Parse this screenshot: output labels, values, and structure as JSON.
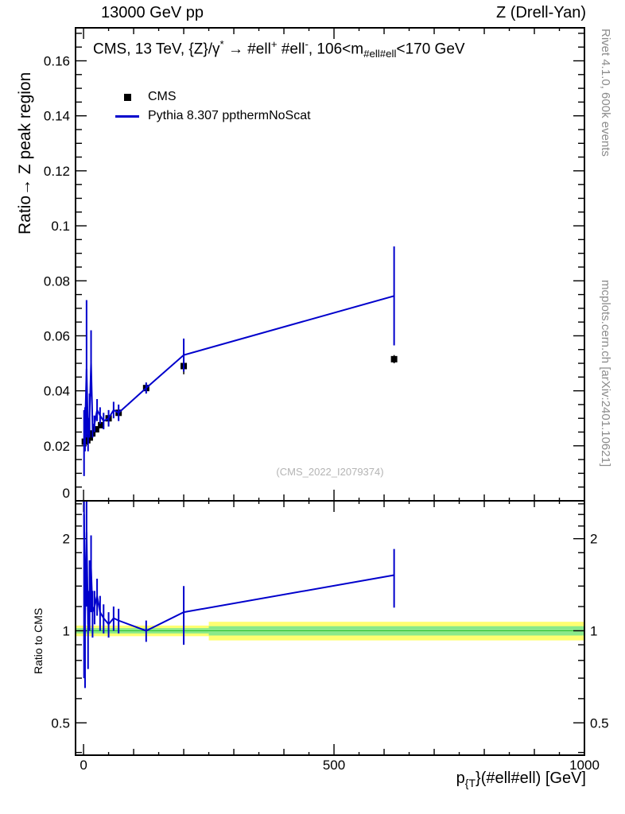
{
  "header": {
    "left": "13000 GeV pp",
    "right": "Z (Drell-Yan)"
  },
  "main_panel": {
    "title_segments": [
      {
        "t": "CMS, 13 TeV, {Z}/γ",
        "s": "n"
      },
      {
        "t": "*",
        "s": "sup"
      },
      {
        "t": " → #ell",
        "s": "n"
      },
      {
        "t": "+",
        "s": "sup"
      },
      {
        "t": " #ell",
        "s": "n"
      },
      {
        "t": "-",
        "s": "sup"
      },
      {
        "t": ", 106<m",
        "s": "n"
      },
      {
        "t": "#ell#ell",
        "s": "sub"
      },
      {
        "t": "<170 GeV",
        "s": "n"
      }
    ],
    "ylabel": "Ratio→ Z peak region",
    "watermark": "(CMS_2022_I2079374)"
  },
  "ratio_panel": {
    "ylabel": "Ratio to CMS"
  },
  "x_axis_label_segments": [
    {
      "t": "p",
      "s": "n"
    },
    {
      "t": "{T",
      "s": "sub"
    },
    {
      "t": "}(#ell#ell) [GeV]",
      "s": "n"
    }
  ],
  "side_notes": {
    "top": "Rivet 4.1.0,  600k events",
    "bottom": "mcplots.cern.ch [arXiv:2401.10621]"
  },
  "colors": {
    "mc_line": "#0000cc",
    "data_marker": "#000000",
    "band_outer": "#ffff70",
    "band_inner": "#8ae98a",
    "reference_line": "#2fbf2f"
  },
  "chart_data": [
    {
      "type": "scatter",
      "panel": "main",
      "xlim": [
        -16,
        1000
      ],
      "ylim": [
        0,
        0.172
      ],
      "x_axis": {
        "major": [
          0,
          500,
          1000
        ],
        "major_labels": [
          "0",
          "500",
          "1000"
        ],
        "minor_step": 100,
        "minor2_step": 50
      },
      "y_axis": {
        "major": [
          0.02,
          0.04,
          0.06,
          0.08,
          0.1,
          0.12,
          0.14,
          0.16
        ],
        "major_labels": [
          "0.02",
          "0.04",
          "0.06",
          "0.08",
          "0.1",
          "0.12",
          "0.14",
          "0.16"
        ],
        "zero_label": "0",
        "minor_step": 0.005
      },
      "series": [
        {
          "name": "CMS",
          "kind": "points",
          "marker": "square",
          "color": "#000000",
          "x": [
            2.5,
            7.5,
            12.5,
            17.5,
            25,
            35,
            50,
            70,
            125,
            200,
            620
          ],
          "y": [
            0.0215,
            0.022,
            0.023,
            0.0245,
            0.026,
            0.0275,
            0.03,
            0.032,
            0.041,
            0.049,
            0.0515
          ],
          "yerr": [
            0.0008,
            0.0008,
            0.0008,
            0.001,
            0.001,
            0.001,
            0.0012,
            0.0015,
            0.002,
            0.003,
            0.0015
          ]
        },
        {
          "name": "Pythia 8.307 ppthermNoScat",
          "kind": "line",
          "color": "#0000cc",
          "x": [
            1,
            3,
            6,
            9,
            12,
            15,
            18,
            22,
            27,
            33,
            40,
            50,
            60,
            70,
            125,
            200,
            620
          ],
          "y": [
            0.021,
            0.026,
            0.048,
            0.024,
            0.031,
            0.05,
            0.027,
            0.028,
            0.033,
            0.031,
            0.029,
            0.03,
            0.033,
            0.032,
            0.041,
            0.053,
            0.0745
          ],
          "yerr": [
            0.012,
            0.008,
            0.025,
            0.006,
            0.008,
            0.012,
            0.004,
            0.003,
            0.004,
            0.003,
            0.003,
            0.003,
            0.003,
            0.003,
            0.002,
            0.006,
            0.018
          ]
        }
      ]
    },
    {
      "type": "line",
      "panel": "ratio",
      "yscale": "log",
      "ylim": [
        0.392,
        2.66
      ],
      "y_axis": {
        "major": [
          0.5,
          1,
          2
        ],
        "major_labels": [
          "0.5",
          "1",
          "2"
        ],
        "minor": [
          0.4,
          0.6,
          0.7,
          0.8,
          0.9,
          1.2,
          1.4,
          1.6,
          1.8,
          2.2,
          2.4,
          2.6
        ]
      },
      "reference_line": 1,
      "bands": [
        {
          "name": "uncertainty-band-outer",
          "color": "#ffff70",
          "segments": [
            {
              "x0": -16,
              "x1": 250,
              "lo": 0.96,
              "hi": 1.04
            },
            {
              "x0": 250,
              "x1": 1000,
              "lo": 0.93,
              "hi": 1.07
            }
          ]
        },
        {
          "name": "uncertainty-band-inner",
          "color": "#8ae98a",
          "segments": [
            {
              "x0": -16,
              "x1": 250,
              "lo": 0.98,
              "hi": 1.02
            },
            {
              "x0": 250,
              "x1": 1000,
              "lo": 0.965,
              "hi": 1.035
            }
          ]
        }
      ],
      "series": [
        {
          "name": "Pythia/CMS",
          "kind": "line",
          "color": "#0000cc",
          "x": [
            1,
            3,
            6,
            9,
            12,
            15,
            18,
            22,
            27,
            33,
            40,
            50,
            60,
            70,
            125,
            200,
            620
          ],
          "y": [
            2.4,
            1.1,
            2.1,
            1.05,
            1.35,
            1.6,
            1.15,
            1.2,
            1.3,
            1.15,
            1.1,
            1.05,
            1.1,
            1.08,
            1.0,
            1.15,
            1.52
          ],
          "yerr": [
            1.7,
            0.45,
            0.9,
            0.3,
            0.35,
            0.45,
            0.2,
            0.15,
            0.18,
            0.15,
            0.12,
            0.1,
            0.1,
            0.1,
            0.08,
            0.25,
            0.33
          ]
        }
      ]
    }
  ]
}
